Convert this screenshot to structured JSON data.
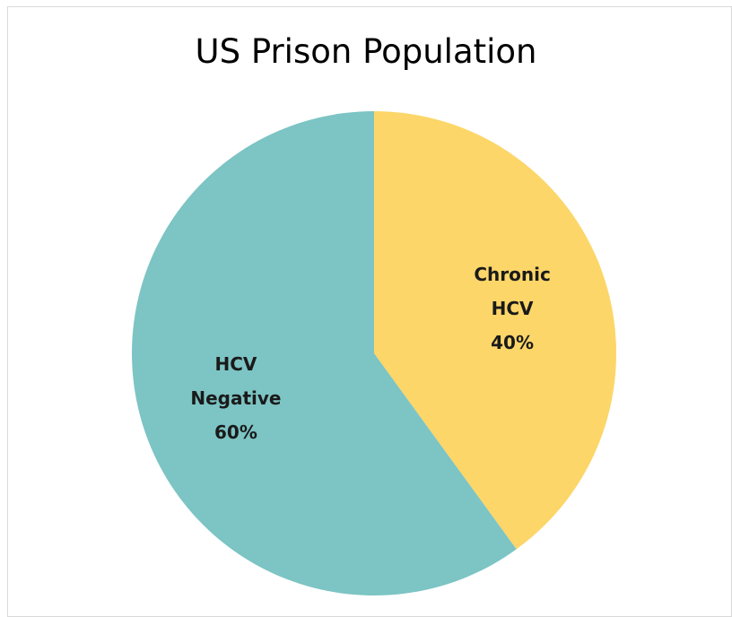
{
  "chart_data": {
    "type": "pie",
    "title": "US Prison Population",
    "slices": [
      {
        "name": "Chronic HCV",
        "label_lines": [
          "Chronic",
          "HCV",
          "40%"
        ],
        "value": 40,
        "color": "#FCD668"
      },
      {
        "name": "HCV Negative",
        "label_lines": [
          "HCV",
          "Negative",
          "60%"
        ],
        "value": 60,
        "color": "#7DC4C4"
      }
    ],
    "start_angle_deg": 0,
    "direction": "clockwise",
    "legend": "none"
  }
}
